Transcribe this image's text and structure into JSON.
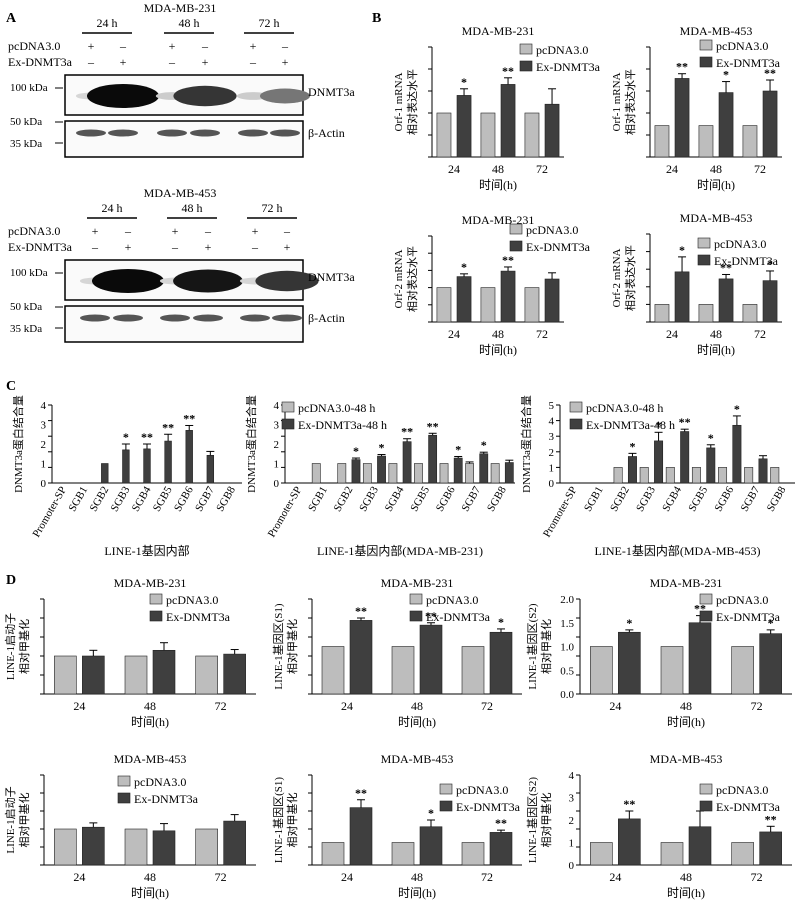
{
  "panel_labels": {
    "A": "A",
    "B": "B",
    "C": "C",
    "D": "D"
  },
  "blots": [
    {
      "title": "MDA-MB-231",
      "timepoints": [
        "24 h",
        "48 h",
        "72 h"
      ],
      "row1_label": "pcDNA3.0",
      "row2_label": "Ex-DNMT3a",
      "row1_signs": [
        "+",
        "–",
        "+",
        "–",
        "+",
        "–"
      ],
      "row2_signs": [
        "–",
        "+",
        "–",
        "+",
        "–",
        "+"
      ],
      "top_band_label": "DNMT3a",
      "bottom_band_label": "β-Actin",
      "kda_labels": [
        "100 kDa",
        "50 kDa",
        "35 kDa"
      ],
      "dnmt3a_band_intensity": [
        0.05,
        1.0,
        0.1,
        0.8,
        0.1,
        0.5
      ]
    },
    {
      "title": "MDA-MB-453",
      "timepoints": [
        "24 h",
        "48 h",
        "72 h"
      ],
      "row1_label": "pcDNA3.0",
      "row2_label": "Ex-DNMT3a",
      "row1_signs": [
        "+",
        "–",
        "+",
        "–",
        "+",
        "–"
      ],
      "row2_signs": [
        "–",
        "+",
        "–",
        "+",
        "–",
        "+"
      ],
      "top_band_label": "DNMT3a",
      "bottom_band_label": "β-Actin",
      "kda_labels": [
        "100 kDa",
        "50 kDa",
        "35 kDa"
      ],
      "dnmt3a_band_intensity": [
        0.05,
        1.0,
        0.05,
        0.95,
        0.05,
        0.8
      ]
    }
  ],
  "chart_data": [
    {
      "id": "B1",
      "type": "bar",
      "title": "MDA-MB-231",
      "ylabel": "Orf-1 mRNA\n相对表达水平",
      "xlabel": "时间(h)",
      "categories": [
        "24",
        "48",
        "72"
      ],
      "ylim": [
        0,
        2.5
      ],
      "yticks": [],
      "series": [
        {
          "name": "pcDNA3.0",
          "values": [
            1,
            1,
            1
          ],
          "err": [
            0,
            0,
            0
          ]
        },
        {
          "name": "Ex-DNMT3a",
          "values": [
            1.4,
            1.65,
            1.2
          ],
          "err": [
            0.15,
            0.15,
            0.35
          ]
        }
      ],
      "annotations": [
        "*",
        "**",
        ""
      ]
    },
    {
      "id": "B2",
      "type": "bar",
      "title": "MDA-MB-453",
      "ylabel": "Orf-1 mRNA\n相对表达水平",
      "xlabel": "时间(h)",
      "categories": [
        "24",
        "48",
        "72"
      ],
      "ylim": [
        0,
        3.5
      ],
      "yticks": [],
      "series": [
        {
          "name": "pcDNA3.0",
          "values": [
            1,
            1,
            1
          ],
          "err": [
            0,
            0,
            0
          ]
        },
        {
          "name": "Ex-DNMT3a",
          "values": [
            2.5,
            2.05,
            2.1
          ],
          "err": [
            0.15,
            0.35,
            0.35
          ]
        }
      ],
      "annotations": [
        "**",
        "*",
        "**"
      ]
    },
    {
      "id": "B3",
      "type": "bar",
      "title": "MDA-MB-231",
      "ylabel": "Orf-2 mRNA\n相对表达水平",
      "xlabel": "时间(h)",
      "categories": [
        "24",
        "48",
        "72"
      ],
      "ylim": [
        0,
        2.5
      ],
      "yticks": [],
      "series": [
        {
          "name": "pcDNA3.0",
          "values": [
            1,
            1,
            1
          ],
          "err": [
            0,
            0,
            0
          ]
        },
        {
          "name": "Ex-DNMT3a",
          "values": [
            1.32,
            1.48,
            1.25
          ],
          "err": [
            0.08,
            0.12,
            0.18
          ]
        }
      ],
      "annotations": [
        "*",
        "**",
        ""
      ]
    },
    {
      "id": "B4",
      "type": "bar",
      "title": "MDA-MB-453",
      "ylabel": "Orf-2 mRNA\n相对表达水平",
      "xlabel": "时间(h)",
      "categories": [
        "24",
        "48",
        "72"
      ],
      "ylim": [
        0,
        5
      ],
      "yticks": [],
      "series": [
        {
          "name": "pcDNA3.0",
          "values": [
            1,
            1,
            1
          ],
          "err": [
            0,
            0,
            0
          ]
        },
        {
          "name": "Ex-DNMT3a",
          "values": [
            2.85,
            2.45,
            2.35
          ],
          "err": [
            0.85,
            0.25,
            0.55
          ]
        }
      ],
      "annotations": [
        "*",
        "**",
        "*"
      ]
    },
    {
      "id": "C1",
      "type": "bar",
      "title": "",
      "ylabel": "DNMT3a蛋白结合量",
      "xlabel": "LINE-1基因内部",
      "categories": [
        "Promoter-SP",
        "SGB1",
        "SGB2",
        "SGB3",
        "SGB4",
        "SGB5",
        "SGB6",
        "SGB7",
        "SGB8"
      ],
      "ylim": [
        0,
        4
      ],
      "yticks": [
        0,
        1,
        2,
        3,
        4
      ],
      "series": [
        {
          "name": "",
          "values": [
            0,
            0,
            1,
            1.7,
            1.75,
            2.15,
            2.7,
            1.42,
            0
          ],
          "err": [
            0,
            0,
            0,
            0.3,
            0.25,
            0.35,
            0.25,
            0.2,
            0
          ]
        }
      ],
      "annotations": [
        "",
        "",
        "",
        "*",
        "**",
        "**",
        "**",
        "",
        ""
      ]
    },
    {
      "id": "C2",
      "type": "bar",
      "title": "",
      "ylabel": "DNMT3a蛋白结合量",
      "xlabel": "LINE-1基因内部(MDA-MB-231)",
      "categories": [
        "Promoter-SP",
        "SGB1",
        "SGB2",
        "SGB3",
        "SGB4",
        "SGB5",
        "SGB6",
        "SGB7",
        "SGB8"
      ],
      "ylim": [
        0,
        4
      ],
      "yticks": [
        0,
        1,
        2,
        3,
        4
      ],
      "series": [
        {
          "name": "pcDNA3.0-48 h",
          "values": [
            0,
            1,
            1,
            1,
            1,
            1,
            1,
            1,
            1
          ],
          "err": [
            0,
            0,
            0,
            0,
            0,
            0,
            0,
            0.08,
            0
          ]
        },
        {
          "name": "Ex-DNMT3a-48 h",
          "values": [
            0,
            0,
            1.2,
            1.38,
            2.12,
            2.45,
            1.28,
            1.5,
            1.05
          ],
          "err": [
            0,
            0,
            0.08,
            0.08,
            0.15,
            0.1,
            0.08,
            0.08,
            0.12
          ]
        }
      ],
      "annotations": [
        "",
        "",
        "*",
        "*",
        "**",
        "**",
        "*",
        "*",
        ""
      ]
    },
    {
      "id": "C3",
      "type": "bar",
      "title": "",
      "ylabel": "DNMT3a蛋白结合量",
      "xlabel": "LINE-1基因内部(MDA-MB-453)",
      "categories": [
        "Promoter-SP",
        "SGB1",
        "SGB2",
        "SGB3",
        "SGB4",
        "SGB5",
        "SGB6",
        "SGB7",
        "SGB8"
      ],
      "ylim": [
        0,
        5
      ],
      "yticks": [
        0,
        1,
        2,
        3,
        4,
        5
      ],
      "series": [
        {
          "name": "pcDNA3.0-48 h",
          "values": [
            0,
            0,
            1,
            1,
            1,
            1,
            1,
            1,
            1
          ],
          "err": [
            0,
            0,
            0,
            0,
            0,
            0,
            0,
            0,
            0
          ]
        },
        {
          "name": "Ex-DNMT3a-48 h",
          "values": [
            0,
            0,
            1.7,
            2.7,
            3.3,
            2.25,
            3.7,
            1.55,
            0
          ],
          "err": [
            0,
            0,
            0.2,
            0.55,
            0.15,
            0.2,
            0.6,
            0.2,
            0
          ]
        }
      ],
      "annotations": [
        "",
        "",
        "*",
        "*",
        "**",
        "*",
        "*",
        "",
        ""
      ]
    },
    {
      "id": "D1",
      "type": "bar",
      "title": "MDA-MB-231",
      "ylabel": "LINE-1启动子\n相对甲基化",
      "xlabel": "时间(h)",
      "categories": [
        "24",
        "48",
        "72"
      ],
      "ylim": [
        0,
        2.5
      ],
      "yticks": [],
      "series": [
        {
          "name": "pcDNA3.0",
          "values": [
            1,
            1,
            1
          ],
          "err": [
            0,
            0,
            0
          ]
        },
        {
          "name": "Ex-DNMT3a",
          "values": [
            1.0,
            1.15,
            1.05
          ],
          "err": [
            0.15,
            0.2,
            0.12
          ]
        }
      ],
      "annotations": [
        "",
        "",
        ""
      ]
    },
    {
      "id": "D2",
      "type": "bar",
      "title": "MDA-MB-231",
      "ylabel": "LINE-1基因区(S1)\n相对甲基化",
      "xlabel": "时间(h)",
      "categories": [
        "24",
        "48",
        "72"
      ],
      "ylim": [
        0,
        2.0
      ],
      "yticks": [],
      "series": [
        {
          "name": "pcDNA3.0",
          "values": [
            1,
            1,
            1
          ],
          "err": [
            0,
            0,
            0
          ]
        },
        {
          "name": "Ex-DNMT3a",
          "values": [
            1.55,
            1.45,
            1.3
          ],
          "err": [
            0.05,
            0.05,
            0.07
          ]
        }
      ],
      "annotations": [
        "**",
        "**",
        "*"
      ]
    },
    {
      "id": "D3",
      "type": "bar",
      "title": "MDA-MB-231",
      "ylabel": "LINE-1基因区(S2)\n相对甲基化",
      "xlabel": "时间(h)",
      "categories": [
        "24",
        "48",
        "72"
      ],
      "ylim": [
        0,
        2.0
      ],
      "yticks": [
        0.0,
        0.5,
        1.0,
        1.5,
        2.0
      ],
      "series": [
        {
          "name": "pcDNA3.0",
          "values": [
            1,
            1,
            1
          ],
          "err": [
            0,
            0,
            0
          ]
        },
        {
          "name": "Ex-DNMT3a",
          "values": [
            1.3,
            1.5,
            1.27
          ],
          "err": [
            0.05,
            0.15,
            0.08
          ]
        }
      ],
      "annotations": [
        "*",
        "**",
        "*"
      ]
    },
    {
      "id": "D4",
      "type": "bar",
      "title": "MDA-MB-453",
      "ylabel": "LINE-1启动子\n相对甲基化",
      "xlabel": "时间(h)",
      "categories": [
        "24",
        "48",
        "72"
      ],
      "ylim": [
        0,
        2.5
      ],
      "yticks": [],
      "series": [
        {
          "name": "pcDNA3.0",
          "values": [
            1,
            1,
            1
          ],
          "err": [
            0,
            0,
            0
          ]
        },
        {
          "name": "Ex-DNMT3a",
          "values": [
            1.05,
            0.95,
            1.22
          ],
          "err": [
            0.12,
            0.2,
            0.18
          ]
        }
      ],
      "annotations": [
        "",
        "",
        ""
      ]
    },
    {
      "id": "D5",
      "type": "bar",
      "title": "MDA-MB-453",
      "ylabel": "LINE-1基因区(S1)\n相对甲基化",
      "xlabel": "时间(h)",
      "categories": [
        "24",
        "48",
        "72"
      ],
      "ylim": [
        0,
        4
      ],
      "yticks": [],
      "series": [
        {
          "name": "pcDNA3.0",
          "values": [
            1,
            1,
            1
          ],
          "err": [
            0,
            0,
            0
          ]
        },
        {
          "name": "Ex-DNMT3a",
          "values": [
            2.55,
            1.7,
            1.45
          ],
          "err": [
            0.35,
            0.3,
            0.1
          ]
        }
      ],
      "annotations": [
        "**",
        "*",
        "**"
      ]
    },
    {
      "id": "D6",
      "type": "bar",
      "title": "MDA-MB-453",
      "ylabel": "LINE-1基因区(S2)\n相对甲基化",
      "xlabel": "时间(h)",
      "categories": [
        "24",
        "48",
        "72"
      ],
      "ylim": [
        0,
        4
      ],
      "yticks": [
        0,
        1,
        2,
        3,
        4
      ],
      "series": [
        {
          "name": "pcDNA3.0",
          "values": [
            1,
            1,
            1
          ],
          "err": [
            0,
            0,
            0
          ]
        },
        {
          "name": "Ex-DNMT3a",
          "values": [
            2.05,
            1.7,
            1.47
          ],
          "err": [
            0.35,
            0.7,
            0.25
          ]
        }
      ],
      "annotations": [
        "**",
        "",
        "**"
      ]
    }
  ],
  "colors": {
    "control": "#bdbdbd",
    "treatment": "#3f3f3f",
    "axis": "#000000"
  }
}
